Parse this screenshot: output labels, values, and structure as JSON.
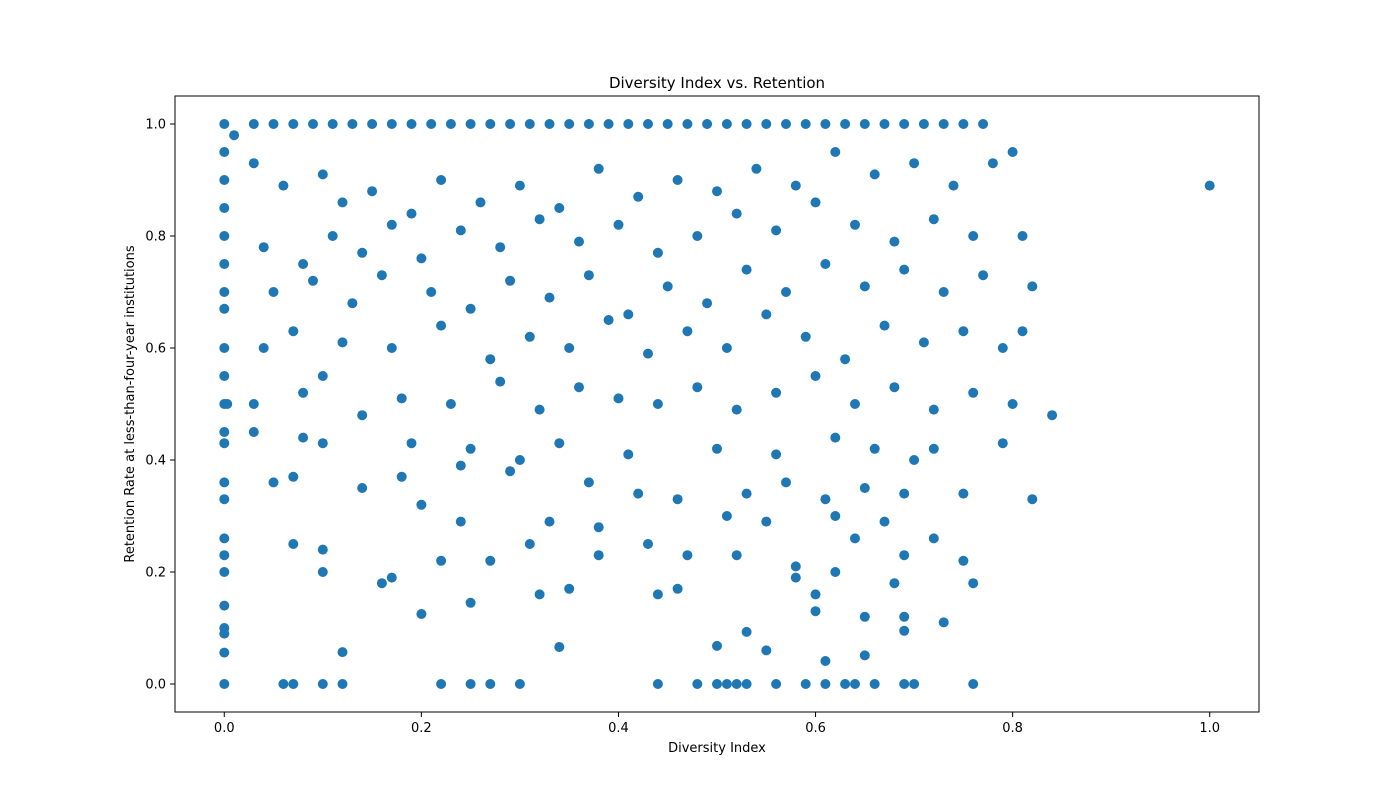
{
  "chart_data": {
    "type": "scatter",
    "title": "Diversity Index vs. Retention",
    "xlabel": "Diversity Index",
    "ylabel": "Retention Rate at less-than-four-year institutions",
    "xlim": [
      -0.05,
      1.05
    ],
    "ylim": [
      -0.05,
      1.05
    ],
    "xticks": [
      0.0,
      0.2,
      0.4,
      0.6,
      0.8,
      1.0
    ],
    "xtick_labels": [
      "0.0",
      "0.2",
      "0.4",
      "0.6",
      "0.8",
      "1.0"
    ],
    "yticks": [
      0.0,
      0.2,
      0.4,
      0.6,
      0.8,
      1.0
    ],
    "ytick_labels": [
      "0.0",
      "0.2",
      "0.4",
      "0.6",
      "0.8",
      "1.0"
    ],
    "grid": false,
    "marker_color": "#1f77b4",
    "points": [
      [
        0.0,
        1.0
      ],
      [
        0.0,
        0.95
      ],
      [
        0.0,
        0.9
      ],
      [
        0.0,
        0.85
      ],
      [
        0.0,
        0.8
      ],
      [
        0.0,
        0.75
      ],
      [
        0.0,
        0.7
      ],
      [
        0.0,
        0.67
      ],
      [
        0.0,
        0.6
      ],
      [
        0.0,
        0.55
      ],
      [
        0.0,
        0.5
      ],
      [
        0.0,
        0.45
      ],
      [
        0.0,
        0.43
      ],
      [
        0.0,
        0.36
      ],
      [
        0.0,
        0.33
      ],
      [
        0.0,
        0.26
      ],
      [
        0.0,
        0.23
      ],
      [
        0.0,
        0.2
      ],
      [
        0.0,
        0.14
      ],
      [
        0.0,
        0.1
      ],
      [
        0.0,
        0.09
      ],
      [
        0.0,
        0.056
      ],
      [
        0.0,
        0.0
      ],
      [
        0.003,
        0.5
      ],
      [
        0.01,
        0.98
      ],
      [
        0.03,
        1.0
      ],
      [
        0.05,
        1.0
      ],
      [
        0.07,
        1.0
      ],
      [
        0.09,
        1.0
      ],
      [
        0.11,
        1.0
      ],
      [
        0.13,
        1.0
      ],
      [
        0.15,
        1.0
      ],
      [
        0.17,
        1.0
      ],
      [
        0.19,
        1.0
      ],
      [
        0.21,
        1.0
      ],
      [
        0.23,
        1.0
      ],
      [
        0.25,
        1.0
      ],
      [
        0.27,
        1.0
      ],
      [
        0.29,
        1.0
      ],
      [
        0.31,
        1.0
      ],
      [
        0.33,
        1.0
      ],
      [
        0.35,
        1.0
      ],
      [
        0.37,
        1.0
      ],
      [
        0.39,
        1.0
      ],
      [
        0.41,
        1.0
      ],
      [
        0.43,
        1.0
      ],
      [
        0.45,
        1.0
      ],
      [
        0.47,
        1.0
      ],
      [
        0.49,
        1.0
      ],
      [
        0.51,
        1.0
      ],
      [
        0.53,
        1.0
      ],
      [
        0.55,
        1.0
      ],
      [
        0.57,
        1.0
      ],
      [
        0.59,
        1.0
      ],
      [
        0.61,
        1.0
      ],
      [
        0.63,
        1.0
      ],
      [
        0.65,
        1.0
      ],
      [
        0.67,
        1.0
      ],
      [
        0.69,
        1.0
      ],
      [
        0.71,
        1.0
      ],
      [
        0.73,
        1.0
      ],
      [
        0.75,
        1.0
      ],
      [
        0.77,
        1.0
      ],
      [
        0.03,
        0.93
      ],
      [
        0.06,
        0.89
      ],
      [
        0.1,
        0.91
      ],
      [
        0.12,
        0.86
      ],
      [
        0.15,
        0.88
      ],
      [
        0.19,
        0.84
      ],
      [
        0.22,
        0.9
      ],
      [
        0.26,
        0.86
      ],
      [
        0.3,
        0.89
      ],
      [
        0.34,
        0.85
      ],
      [
        0.38,
        0.92
      ],
      [
        0.42,
        0.87
      ],
      [
        0.46,
        0.9
      ],
      [
        0.5,
        0.88
      ],
      [
        0.54,
        0.92
      ],
      [
        0.58,
        0.89
      ],
      [
        0.62,
        0.95
      ],
      [
        0.66,
        0.91
      ],
      [
        0.7,
        0.93
      ],
      [
        0.74,
        0.89
      ],
      [
        0.78,
        0.93
      ],
      [
        0.8,
        0.95
      ],
      [
        0.04,
        0.78
      ],
      [
        0.08,
        0.75
      ],
      [
        0.11,
        0.8
      ],
      [
        0.14,
        0.77
      ],
      [
        0.17,
        0.82
      ],
      [
        0.2,
        0.76
      ],
      [
        0.24,
        0.81
      ],
      [
        0.28,
        0.78
      ],
      [
        0.32,
        0.83
      ],
      [
        0.36,
        0.79
      ],
      [
        0.4,
        0.82
      ],
      [
        0.44,
        0.77
      ],
      [
        0.48,
        0.8
      ],
      [
        0.52,
        0.84
      ],
      [
        0.56,
        0.81
      ],
      [
        0.6,
        0.86
      ],
      [
        0.64,
        0.82
      ],
      [
        0.68,
        0.79
      ],
      [
        0.72,
        0.83
      ],
      [
        0.76,
        0.8
      ],
      [
        0.81,
        0.8
      ],
      [
        0.05,
        0.7
      ],
      [
        0.09,
        0.72
      ],
      [
        0.13,
        0.68
      ],
      [
        0.16,
        0.73
      ],
      [
        0.21,
        0.7
      ],
      [
        0.25,
        0.67
      ],
      [
        0.29,
        0.72
      ],
      [
        0.33,
        0.69
      ],
      [
        0.37,
        0.73
      ],
      [
        0.41,
        0.66
      ],
      [
        0.45,
        0.71
      ],
      [
        0.49,
        0.68
      ],
      [
        0.53,
        0.74
      ],
      [
        0.57,
        0.7
      ],
      [
        0.61,
        0.75
      ],
      [
        0.65,
        0.71
      ],
      [
        0.69,
        0.74
      ],
      [
        0.73,
        0.7
      ],
      [
        0.77,
        0.73
      ],
      [
        0.82,
        0.71
      ],
      [
        0.04,
        0.6
      ],
      [
        0.07,
        0.63
      ],
      [
        0.12,
        0.61
      ],
      [
        0.17,
        0.6
      ],
      [
        0.22,
        0.64
      ],
      [
        0.27,
        0.58
      ],
      [
        0.31,
        0.62
      ],
      [
        0.35,
        0.6
      ],
      [
        0.39,
        0.65
      ],
      [
        0.43,
        0.59
      ],
      [
        0.47,
        0.63
      ],
      [
        0.51,
        0.6
      ],
      [
        0.55,
        0.66
      ],
      [
        0.59,
        0.62
      ],
      [
        0.63,
        0.58
      ],
      [
        0.67,
        0.64
      ],
      [
        0.71,
        0.61
      ],
      [
        0.75,
        0.63
      ],
      [
        0.79,
        0.6
      ],
      [
        0.81,
        0.63
      ],
      [
        0.03,
        0.5
      ],
      [
        0.08,
        0.52
      ],
      [
        0.1,
        0.55
      ],
      [
        0.14,
        0.48
      ],
      [
        0.18,
        0.51
      ],
      [
        0.23,
        0.5
      ],
      [
        0.28,
        0.54
      ],
      [
        0.32,
        0.49
      ],
      [
        0.36,
        0.53
      ],
      [
        0.4,
        0.51
      ],
      [
        0.44,
        0.5
      ],
      [
        0.48,
        0.53
      ],
      [
        0.52,
        0.49
      ],
      [
        0.56,
        0.52
      ],
      [
        0.6,
        0.55
      ],
      [
        0.64,
        0.5
      ],
      [
        0.68,
        0.53
      ],
      [
        0.72,
        0.49
      ],
      [
        0.76,
        0.52
      ],
      [
        0.8,
        0.5
      ],
      [
        0.84,
        0.48
      ],
      [
        0.03,
        0.45
      ],
      [
        0.08,
        0.44
      ],
      [
        0.1,
        0.43
      ],
      [
        0.19,
        0.43
      ],
      [
        0.25,
        0.42
      ],
      [
        0.3,
        0.4
      ],
      [
        0.34,
        0.43
      ],
      [
        0.41,
        0.41
      ],
      [
        0.5,
        0.42
      ],
      [
        0.56,
        0.41
      ],
      [
        0.62,
        0.44
      ],
      [
        0.66,
        0.42
      ],
      [
        0.7,
        0.4
      ],
      [
        0.72,
        0.42
      ],
      [
        0.79,
        0.43
      ],
      [
        0.05,
        0.36
      ],
      [
        0.07,
        0.37
      ],
      [
        0.14,
        0.35
      ],
      [
        0.18,
        0.37
      ],
      [
        0.24,
        0.39
      ],
      [
        0.29,
        0.38
      ],
      [
        0.37,
        0.36
      ],
      [
        0.42,
        0.34
      ],
      [
        0.46,
        0.33
      ],
      [
        0.53,
        0.34
      ],
      [
        0.57,
        0.36
      ],
      [
        0.61,
        0.33
      ],
      [
        0.65,
        0.35
      ],
      [
        0.69,
        0.34
      ],
      [
        0.75,
        0.34
      ],
      [
        0.82,
        0.33
      ],
      [
        0.2,
        0.32
      ],
      [
        0.24,
        0.29
      ],
      [
        0.33,
        0.29
      ],
      [
        0.38,
        0.28
      ],
      [
        0.51,
        0.3
      ],
      [
        0.55,
        0.29
      ],
      [
        0.62,
        0.3
      ],
      [
        0.67,
        0.29
      ],
      [
        0.07,
        0.25
      ],
      [
        0.1,
        0.24
      ],
      [
        0.17,
        0.19
      ],
      [
        0.22,
        0.22
      ],
      [
        0.27,
        0.22
      ],
      [
        0.31,
        0.25
      ],
      [
        0.38,
        0.23
      ],
      [
        0.43,
        0.25
      ],
      [
        0.47,
        0.23
      ],
      [
        0.52,
        0.23
      ],
      [
        0.58,
        0.21
      ],
      [
        0.64,
        0.26
      ],
      [
        0.69,
        0.23
      ],
      [
        0.72,
        0.26
      ],
      [
        0.75,
        0.22
      ],
      [
        0.1,
        0.2
      ],
      [
        0.16,
        0.18
      ],
      [
        0.32,
        0.16
      ],
      [
        0.35,
        0.17
      ],
      [
        0.44,
        0.16
      ],
      [
        0.46,
        0.17
      ],
      [
        0.58,
        0.19
      ],
      [
        0.6,
        0.16
      ],
      [
        0.62,
        0.2
      ],
      [
        0.68,
        0.18
      ],
      [
        0.76,
        0.18
      ],
      [
        0.2,
        0.125
      ],
      [
        0.25,
        0.145
      ],
      [
        0.6,
        0.13
      ],
      [
        0.65,
        0.12
      ],
      [
        0.69,
        0.12
      ],
      [
        0.73,
        0.11
      ],
      [
        0.12,
        0.057
      ],
      [
        0.34,
        0.066
      ],
      [
        0.5,
        0.068
      ],
      [
        0.53,
        0.093
      ],
      [
        0.55,
        0.06
      ],
      [
        0.61,
        0.041
      ],
      [
        0.65,
        0.051
      ],
      [
        0.69,
        0.095
      ],
      [
        0.06,
        0.0
      ],
      [
        0.07,
        0.0
      ],
      [
        0.1,
        0.0
      ],
      [
        0.12,
        0.0
      ],
      [
        0.22,
        0.0
      ],
      [
        0.25,
        0.0
      ],
      [
        0.27,
        0.0
      ],
      [
        0.3,
        0.0
      ],
      [
        0.44,
        0.0
      ],
      [
        0.48,
        0.0
      ],
      [
        0.5,
        0.0
      ],
      [
        0.51,
        0.0
      ],
      [
        0.52,
        0.0
      ],
      [
        0.53,
        0.0
      ],
      [
        0.56,
        0.0
      ],
      [
        0.59,
        0.0
      ],
      [
        0.61,
        0.0
      ],
      [
        0.63,
        0.0
      ],
      [
        0.64,
        0.0
      ],
      [
        0.66,
        0.0
      ],
      [
        0.69,
        0.0
      ],
      [
        0.7,
        0.0
      ],
      [
        0.76,
        0.0
      ],
      [
        1.0,
        0.89
      ]
    ]
  }
}
